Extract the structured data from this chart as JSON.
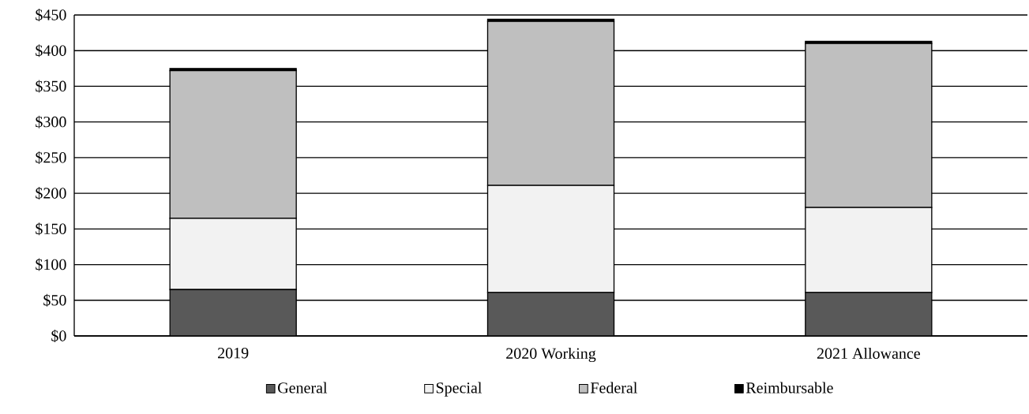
{
  "chart_data": {
    "type": "bar",
    "stacked": true,
    "categories": [
      "2019",
      "2020 Working",
      "2021 Allowance"
    ],
    "series": [
      {
        "name": "General",
        "color": "#595959",
        "values": [
          65,
          61,
          61
        ]
      },
      {
        "name": "Special",
        "color": "#f2f2f2",
        "values": [
          100,
          150,
          119
        ]
      },
      {
        "name": "Federal",
        "color": "#bfbfbf",
        "values": [
          207,
          230,
          230
        ]
      },
      {
        "name": "Reimbursable",
        "color": "#000000",
        "values": [
          3,
          3,
          3
        ]
      }
    ],
    "ylim": [
      0,
      450
    ],
    "yticks": [
      {
        "value": 0,
        "label": "$0"
      },
      {
        "value": 50,
        "label": "$50"
      },
      {
        "value": 100,
        "label": "$100"
      },
      {
        "value": 150,
        "label": "$150"
      },
      {
        "value": 200,
        "label": "$200"
      },
      {
        "value": 250,
        "label": "$250"
      },
      {
        "value": 300,
        "label": "$300"
      },
      {
        "value": 350,
        "label": "$350"
      },
      {
        "value": 400,
        "label": "$400"
      },
      {
        "value": 450,
        "label": "$450"
      }
    ],
    "grid": "y",
    "legend": "bottom"
  }
}
